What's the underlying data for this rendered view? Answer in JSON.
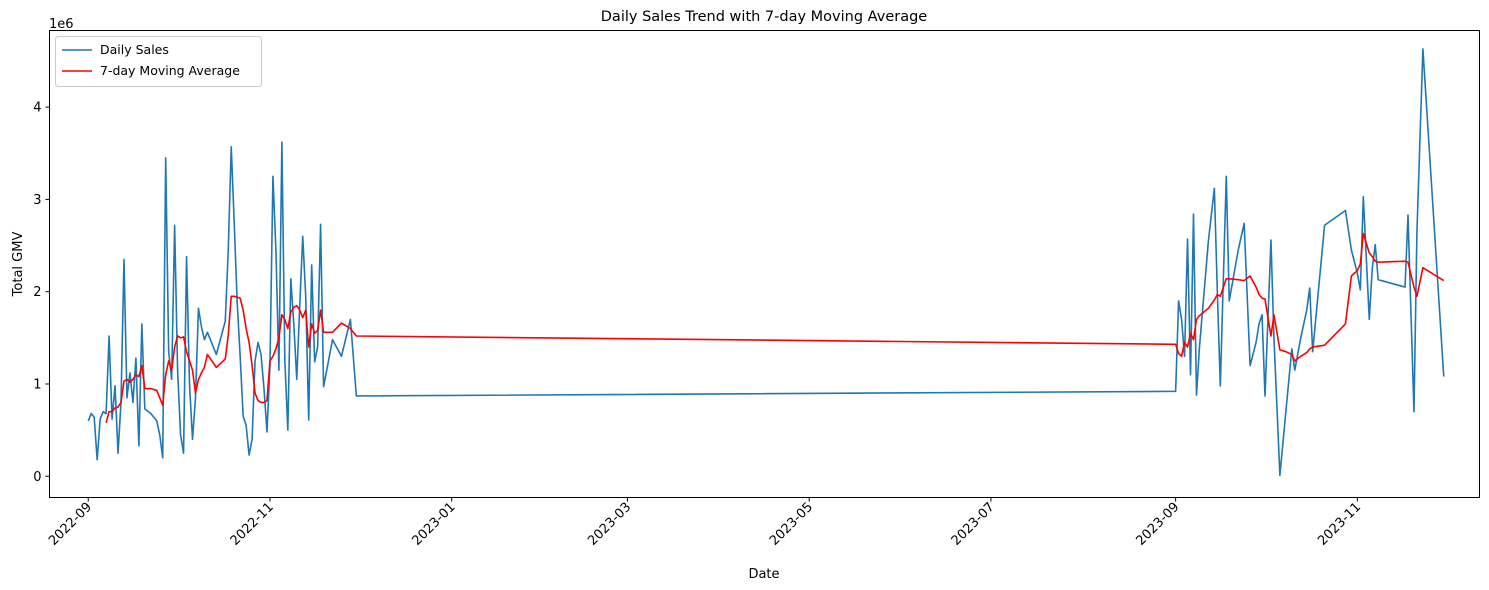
{
  "chart_data": {
    "type": "line",
    "title": "Daily Sales Trend with 7-day Moving Average",
    "xlabel": "Date",
    "ylabel": "Total GMV",
    "y_scale_label": "1e6",
    "ylim": [
      -0.23,
      4.83
    ],
    "xlim": [
      "2022-08-19",
      "2023-12-12"
    ],
    "grid": false,
    "legend_position": "top-left",
    "x_ticks": [
      "2022-09-01",
      "2022-11-01",
      "2023-01-01",
      "2023-03-01",
      "2023-05-01",
      "2023-07-01",
      "2023-09-01",
      "2023-11-01"
    ],
    "x_tick_labels": [
      "2022-09",
      "2022-11",
      "2023-01",
      "2023-03",
      "2023-05",
      "2023-07",
      "2023-09",
      "2023-11"
    ],
    "y_ticks": [
      0,
      1,
      2,
      3,
      4
    ],
    "y_tick_labels": [
      "0",
      "1",
      "2",
      "3",
      "4"
    ],
    "series": [
      {
        "name": "Daily Sales",
        "color": "#1f77b4",
        "points": [
          [
            "2022-09-01",
            0.6
          ],
          [
            "2022-09-02",
            0.68
          ],
          [
            "2022-09-03",
            0.64
          ],
          [
            "2022-09-04",
            0.18
          ],
          [
            "2022-09-05",
            0.62
          ],
          [
            "2022-09-06",
            0.7
          ],
          [
            "2022-09-07",
            0.68
          ],
          [
            "2022-09-08",
            1.52
          ],
          [
            "2022-09-09",
            0.62
          ],
          [
            "2022-09-10",
            0.98
          ],
          [
            "2022-09-11",
            0.25
          ],
          [
            "2022-09-12",
            0.8
          ],
          [
            "2022-09-13",
            2.35
          ],
          [
            "2022-09-14",
            0.85
          ],
          [
            "2022-09-15",
            1.12
          ],
          [
            "2022-09-16",
            0.8
          ],
          [
            "2022-09-17",
            1.28
          ],
          [
            "2022-09-18",
            0.33
          ],
          [
            "2022-09-19",
            1.65
          ],
          [
            "2022-09-20",
            0.73
          ],
          [
            "2022-09-22",
            0.68
          ],
          [
            "2022-09-24",
            0.6
          ],
          [
            "2022-09-25",
            0.45
          ],
          [
            "2022-09-26",
            0.2
          ],
          [
            "2022-09-27",
            3.45
          ],
          [
            "2022-09-28",
            1.35
          ],
          [
            "2022-09-29",
            1.05
          ],
          [
            "2022-09-30",
            2.72
          ],
          [
            "2022-10-01",
            1.15
          ],
          [
            "2022-10-02",
            0.45
          ],
          [
            "2022-10-03",
            0.25
          ],
          [
            "2022-10-04",
            2.38
          ],
          [
            "2022-10-05",
            1.0
          ],
          [
            "2022-10-06",
            0.4
          ],
          [
            "2022-10-07",
            0.85
          ],
          [
            "2022-10-08",
            1.82
          ],
          [
            "2022-10-09",
            1.62
          ],
          [
            "2022-10-10",
            1.48
          ],
          [
            "2022-10-11",
            1.56
          ],
          [
            "2022-10-14",
            1.32
          ],
          [
            "2022-10-17",
            1.68
          ],
          [
            "2022-10-18",
            2.45
          ],
          [
            "2022-10-19",
            3.57
          ],
          [
            "2022-10-20",
            2.75
          ],
          [
            "2022-10-21",
            1.88
          ],
          [
            "2022-10-22",
            1.3
          ],
          [
            "2022-10-23",
            0.65
          ],
          [
            "2022-10-24",
            0.55
          ],
          [
            "2022-10-25",
            0.23
          ],
          [
            "2022-10-26",
            0.4
          ],
          [
            "2022-10-27",
            1.25
          ],
          [
            "2022-10-28",
            1.45
          ],
          [
            "2022-10-29",
            1.32
          ],
          [
            "2022-10-30",
            0.95
          ],
          [
            "2022-10-31",
            0.48
          ],
          [
            "2022-11-01",
            1.2
          ],
          [
            "2022-11-02",
            3.25
          ],
          [
            "2022-11-03",
            2.45
          ],
          [
            "2022-11-04",
            1.15
          ],
          [
            "2022-11-05",
            3.62
          ],
          [
            "2022-11-06",
            1.25
          ],
          [
            "2022-11-07",
            0.5
          ],
          [
            "2022-11-08",
            2.14
          ],
          [
            "2022-11-09",
            1.65
          ],
          [
            "2022-11-10",
            1.05
          ],
          [
            "2022-11-11",
            1.85
          ],
          [
            "2022-11-12",
            2.6
          ],
          [
            "2022-11-13",
            1.95
          ],
          [
            "2022-11-14",
            0.61
          ],
          [
            "2022-11-15",
            2.29
          ],
          [
            "2022-11-16",
            1.24
          ],
          [
            "2022-11-17",
            1.4
          ],
          [
            "2022-11-18",
            2.73
          ],
          [
            "2022-11-19",
            0.97
          ],
          [
            "2022-11-22",
            1.48
          ],
          [
            "2022-11-25",
            1.3
          ],
          [
            "2022-11-28",
            1.7
          ],
          [
            "2022-11-30",
            0.87
          ],
          [
            "2023-09-01",
            0.92
          ],
          [
            "2023-09-02",
            1.9
          ],
          [
            "2023-09-03",
            1.7
          ],
          [
            "2023-09-04",
            1.3
          ],
          [
            "2023-09-05",
            2.57
          ],
          [
            "2023-09-06",
            1.1
          ],
          [
            "2023-09-07",
            2.84
          ],
          [
            "2023-09-08",
            0.88
          ],
          [
            "2023-09-09",
            1.4
          ],
          [
            "2023-09-12",
            2.55
          ],
          [
            "2023-09-14",
            3.12
          ],
          [
            "2023-09-15",
            2.0
          ],
          [
            "2023-09-16",
            0.98
          ],
          [
            "2023-09-18",
            3.25
          ],
          [
            "2023-09-19",
            1.9
          ],
          [
            "2023-09-22",
            2.45
          ],
          [
            "2023-09-24",
            2.74
          ],
          [
            "2023-09-26",
            1.2
          ],
          [
            "2023-09-28",
            1.45
          ],
          [
            "2023-09-29",
            1.65
          ],
          [
            "2023-09-30",
            1.75
          ],
          [
            "2023-10-01",
            0.87
          ],
          [
            "2023-10-03",
            2.56
          ],
          [
            "2023-10-04",
            1.5
          ],
          [
            "2023-10-06",
            0.01
          ],
          [
            "2023-10-08",
            0.7
          ],
          [
            "2023-10-10",
            1.38
          ],
          [
            "2023-10-11",
            1.15
          ],
          [
            "2023-10-13",
            1.5
          ],
          [
            "2023-10-15",
            1.8
          ],
          [
            "2023-10-16",
            2.04
          ],
          [
            "2023-10-17",
            1.35
          ],
          [
            "2023-10-21",
            2.72
          ],
          [
            "2023-10-28",
            2.88
          ],
          [
            "2023-10-30",
            2.45
          ],
          [
            "2023-11-01",
            2.2
          ],
          [
            "2023-11-02",
            2.02
          ],
          [
            "2023-11-03",
            3.03
          ],
          [
            "2023-11-05",
            1.7
          ],
          [
            "2023-11-06",
            2.25
          ],
          [
            "2023-11-07",
            2.51
          ],
          [
            "2023-11-08",
            2.13
          ],
          [
            "2023-11-17",
            2.05
          ],
          [
            "2023-11-18",
            2.83
          ],
          [
            "2023-11-20",
            0.7
          ],
          [
            "2023-11-21",
            2.65
          ],
          [
            "2023-11-23",
            4.63
          ],
          [
            "2023-11-30",
            1.08
          ]
        ]
      },
      {
        "name": "7-day Moving Average",
        "color": "#ff0000",
        "points": [
          [
            "2022-09-07",
            0.58
          ],
          [
            "2022-09-08",
            0.7
          ],
          [
            "2022-09-09",
            0.7
          ],
          [
            "2022-09-10",
            0.74
          ],
          [
            "2022-09-11",
            0.75
          ],
          [
            "2022-09-12",
            0.8
          ],
          [
            "2022-09-13",
            1.03
          ],
          [
            "2022-09-14",
            1.05
          ],
          [
            "2022-09-15",
            1.02
          ],
          [
            "2022-09-16",
            1.05
          ],
          [
            "2022-09-17",
            1.1
          ],
          [
            "2022-09-18",
            1.08
          ],
          [
            "2022-09-19",
            1.2
          ],
          [
            "2022-09-20",
            0.95
          ],
          [
            "2022-09-22",
            0.95
          ],
          [
            "2022-09-24",
            0.93
          ],
          [
            "2022-09-25",
            0.85
          ],
          [
            "2022-09-26",
            0.77
          ],
          [
            "2022-09-27",
            1.1
          ],
          [
            "2022-09-28",
            1.25
          ],
          [
            "2022-09-29",
            1.15
          ],
          [
            "2022-09-30",
            1.4
          ],
          [
            "2022-10-01",
            1.52
          ],
          [
            "2022-10-02",
            1.5
          ],
          [
            "2022-10-03",
            1.51
          ],
          [
            "2022-10-04",
            1.35
          ],
          [
            "2022-10-05",
            1.25
          ],
          [
            "2022-10-06",
            1.15
          ],
          [
            "2022-10-07",
            0.9
          ],
          [
            "2022-10-08",
            1.05
          ],
          [
            "2022-10-09",
            1.12
          ],
          [
            "2022-10-10",
            1.18
          ],
          [
            "2022-10-11",
            1.32
          ],
          [
            "2022-10-14",
            1.18
          ],
          [
            "2022-10-17",
            1.27
          ],
          [
            "2022-10-18",
            1.53
          ],
          [
            "2022-10-19",
            1.95
          ],
          [
            "2022-10-20",
            1.95
          ],
          [
            "2022-10-21",
            1.94
          ],
          [
            "2022-10-22",
            1.93
          ],
          [
            "2022-10-23",
            1.8
          ],
          [
            "2022-10-24",
            1.6
          ],
          [
            "2022-10-25",
            1.45
          ],
          [
            "2022-10-26",
            1.2
          ],
          [
            "2022-10-27",
            0.9
          ],
          [
            "2022-10-28",
            0.82
          ],
          [
            "2022-10-29",
            0.8
          ],
          [
            "2022-10-30",
            0.8
          ],
          [
            "2022-10-31",
            0.82
          ],
          [
            "2022-11-01",
            1.25
          ],
          [
            "2022-11-02",
            1.3
          ],
          [
            "2022-11-03",
            1.38
          ],
          [
            "2022-11-04",
            1.5
          ],
          [
            "2022-11-05",
            1.75
          ],
          [
            "2022-11-06",
            1.7
          ],
          [
            "2022-11-07",
            1.6
          ],
          [
            "2022-11-08",
            1.78
          ],
          [
            "2022-11-09",
            1.83
          ],
          [
            "2022-11-10",
            1.85
          ],
          [
            "2022-11-11",
            1.8
          ],
          [
            "2022-11-12",
            1.72
          ],
          [
            "2022-11-13",
            1.8
          ],
          [
            "2022-11-14",
            1.4
          ],
          [
            "2022-11-15",
            1.65
          ],
          [
            "2022-11-16",
            1.55
          ],
          [
            "2022-11-17",
            1.58
          ],
          [
            "2022-11-18",
            1.8
          ],
          [
            "2022-11-19",
            1.56
          ],
          [
            "2022-11-22",
            1.56
          ],
          [
            "2022-11-25",
            1.66
          ],
          [
            "2022-11-28",
            1.6
          ],
          [
            "2022-11-30",
            1.52
          ],
          [
            "2023-09-01",
            1.43
          ],
          [
            "2023-09-02",
            1.33
          ],
          [
            "2023-09-03",
            1.3
          ],
          [
            "2023-09-04",
            1.45
          ],
          [
            "2023-09-05",
            1.4
          ],
          [
            "2023-09-06",
            1.55
          ],
          [
            "2023-09-07",
            1.48
          ],
          [
            "2023-09-08",
            1.7
          ],
          [
            "2023-09-09",
            1.74
          ],
          [
            "2023-09-12",
            1.82
          ],
          [
            "2023-09-14",
            1.91
          ],
          [
            "2023-09-15",
            1.97
          ],
          [
            "2023-09-16",
            1.95
          ],
          [
            "2023-09-18",
            2.14
          ],
          [
            "2023-09-19",
            2.14
          ],
          [
            "2023-09-22",
            2.13
          ],
          [
            "2023-09-24",
            2.12
          ],
          [
            "2023-09-26",
            2.17
          ],
          [
            "2023-09-28",
            2.05
          ],
          [
            "2023-09-29",
            1.97
          ],
          [
            "2023-09-30",
            1.93
          ],
          [
            "2023-10-01",
            1.92
          ],
          [
            "2023-10-03",
            1.52
          ],
          [
            "2023-10-04",
            1.75
          ],
          [
            "2023-10-06",
            1.37
          ],
          [
            "2023-10-08",
            1.35
          ],
          [
            "2023-10-10",
            1.32
          ],
          [
            "2023-10-11",
            1.25
          ],
          [
            "2023-10-13",
            1.3
          ],
          [
            "2023-10-15",
            1.34
          ],
          [
            "2023-10-16",
            1.38
          ],
          [
            "2023-10-17",
            1.4
          ],
          [
            "2023-10-21",
            1.42
          ],
          [
            "2023-10-28",
            1.65
          ],
          [
            "2023-10-30",
            2.17
          ],
          [
            "2023-11-01",
            2.23
          ],
          [
            "2023-11-02",
            2.3
          ],
          [
            "2023-11-03",
            2.63
          ],
          [
            "2023-11-05",
            2.42
          ],
          [
            "2023-11-06",
            2.38
          ],
          [
            "2023-11-07",
            2.33
          ],
          [
            "2023-11-08",
            2.32
          ],
          [
            "2023-11-17",
            2.33
          ],
          [
            "2023-11-18",
            2.32
          ],
          [
            "2023-11-20",
            2.05
          ],
          [
            "2023-11-21",
            1.95
          ],
          [
            "2023-11-23",
            2.26
          ],
          [
            "2023-11-30",
            2.12
          ]
        ]
      }
    ]
  }
}
